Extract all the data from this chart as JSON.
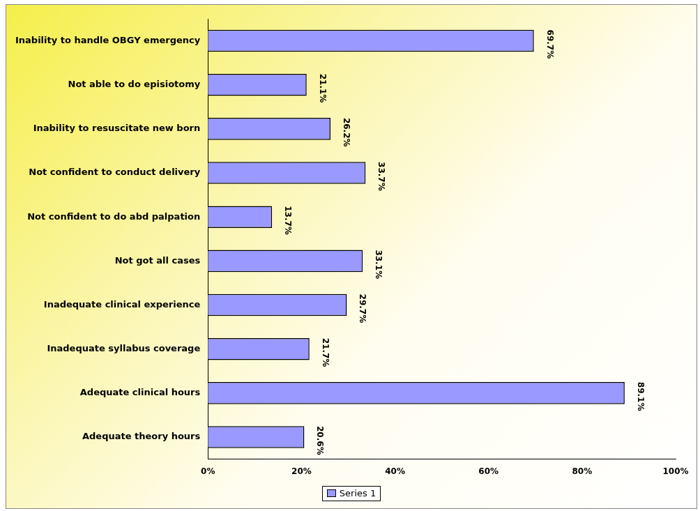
{
  "chart_data": {
    "type": "bar",
    "orientation": "horizontal",
    "categories": [
      "Inability to handle OBGY emergency",
      "Not able to do episiotomy",
      "Inability to resuscitate new born",
      "Not confident to conduct delivery",
      "Not confident to do abd palpation",
      "Not got all cases",
      "Inadequate clinical experience",
      "Inadequate syllabus coverage",
      "Adequate clinical hours",
      "Adequate theory hours"
    ],
    "series": [
      {
        "name": "Series 1",
        "color": "#9999ff",
        "values": [
          69.7,
          21.1,
          26.2,
          33.7,
          13.7,
          33.1,
          29.7,
          21.7,
          89.1,
          20.6
        ],
        "value_labels": [
          "69.7%",
          "21.1%",
          "26.2%",
          "33.7%",
          "13.7%",
          "33.1%",
          "29.7%",
          "21.7%",
          "89.1%",
          "20.6%"
        ]
      }
    ],
    "xlim": [
      0,
      100
    ],
    "xticks": [
      {
        "value": 0,
        "label": "0%"
      },
      {
        "value": 20,
        "label": "20%"
      },
      {
        "value": 40,
        "label": "40%"
      },
      {
        "value": 60,
        "label": "60%"
      },
      {
        "value": 80,
        "label": "80%"
      },
      {
        "value": 100,
        "label": "100%"
      }
    ],
    "grid": false,
    "legend": "bottom"
  }
}
